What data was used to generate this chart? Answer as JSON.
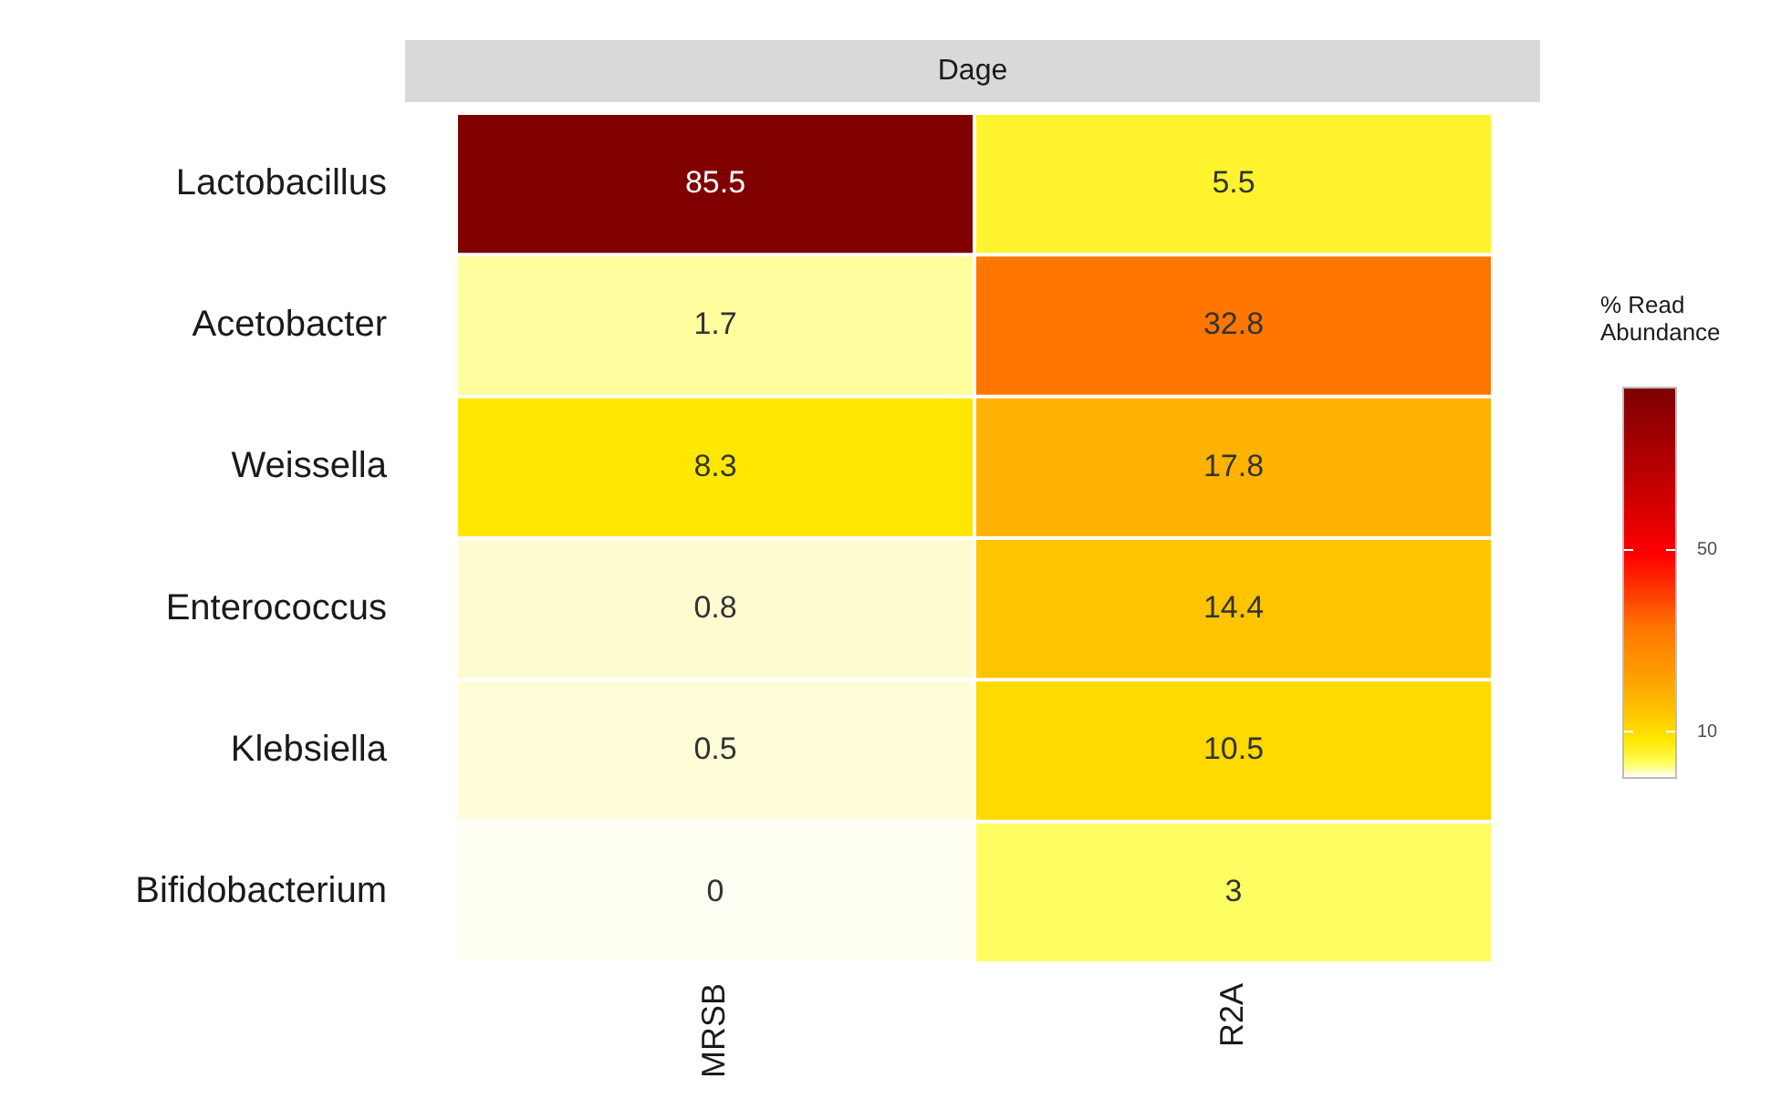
{
  "chart_data": {
    "type": "heatmap",
    "title": "Dage",
    "clabel": "% Read Abundance",
    "categories": [
      "MRSB",
      "R2A"
    ],
    "y_categories": [
      "Lactobacillus",
      "Acetobacter",
      "Weissella",
      "Enterococcus",
      "Klebsiella",
      "Bifidobacterium"
    ],
    "cells": [
      [
        85.5,
        5.5
      ],
      [
        1.7,
        32.8
      ],
      [
        8.3,
        17.8
      ],
      [
        0.8,
        14.4
      ],
      [
        0.5,
        10.5
      ],
      [
        0,
        3
      ]
    ],
    "data_labels": true,
    "clim": [
      0,
      85.5
    ],
    "cticks": [
      10,
      50
    ],
    "grid": false
  }
}
